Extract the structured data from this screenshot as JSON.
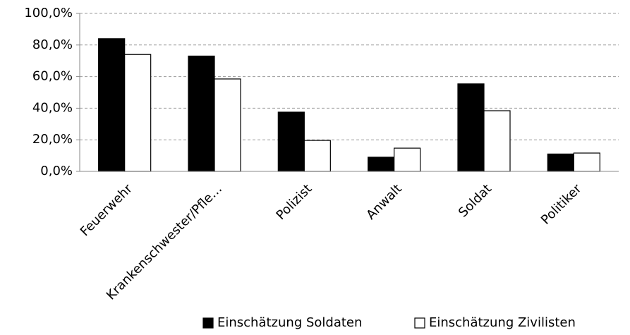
{
  "chart_data": {
    "type": "bar",
    "categories": [
      "Feuerwehr",
      "Krankenschwester/Pfle…",
      "Polizist",
      "Anwalt",
      "Soldat",
      "Politiker"
    ],
    "series": [
      {
        "name": "Einschätzung Soldaten",
        "color": "#000000",
        "values": [
          84,
          73,
          37.5,
          9,
          55.4,
          11
        ]
      },
      {
        "name": "Einschätzung Zivilisten",
        "color": "#ffffff",
        "values": [
          74,
          58.5,
          19.6,
          14.7,
          38.4,
          11.6
        ]
      }
    ],
    "ylim": [
      0,
      100
    ],
    "yticks": [
      {
        "value": 0,
        "label": "0,0%"
      },
      {
        "value": 20,
        "label": "20,0%"
      },
      {
        "value": 40,
        "label": "40,0%"
      },
      {
        "value": 60,
        "label": "60,0%"
      },
      {
        "value": 80,
        "label": "80,0%"
      },
      {
        "value": 100,
        "label": "100,0%"
      }
    ],
    "grid": true,
    "legend": "bottom"
  }
}
